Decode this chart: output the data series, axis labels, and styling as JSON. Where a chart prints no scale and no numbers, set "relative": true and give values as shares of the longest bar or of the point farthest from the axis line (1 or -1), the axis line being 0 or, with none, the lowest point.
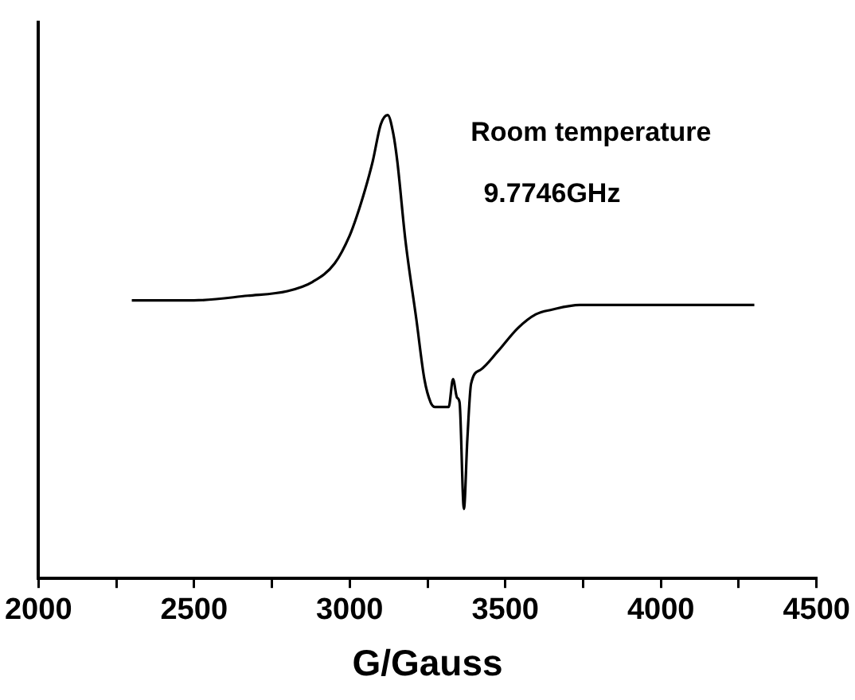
{
  "chart_data": {
    "type": "line",
    "xlabel": "G/Gauss",
    "relative": true,
    "grid": false,
    "legend": false,
    "marker": "none",
    "line_style": "solid",
    "tick_labels": "x",
    "xlim": [
      2000,
      4500
    ],
    "xticks": [
      2000,
      {
        "value": 2250,
        "label": null
      },
      2500,
      {
        "value": 2750,
        "label": null
      },
      3000,
      {
        "value": 3250,
        "label": null
      },
      3500,
      {
        "value": 3750,
        "label": null
      },
      4000,
      {
        "value": 4250,
        "label": null
      },
      4500
    ],
    "annotations": [
      "Room temperature",
      "9.7746GHz"
    ],
    "series": [
      {
        "color": "#000000",
        "x": [
          2300,
          2500,
          2672,
          2800,
          2881,
          2952,
          3000,
          3022,
          3050,
          3074,
          3100,
          3122,
          3140,
          3153,
          3179,
          3214,
          3240,
          3260,
          3274,
          3290,
          3300,
          3318,
          3332,
          3345,
          3353,
          3367,
          3378,
          3390,
          3420,
          3476,
          3540,
          3598,
          3650,
          3739,
          3900,
          4100,
          4300
        ],
        "values": [
          0.6,
          0.6,
          0.61,
          0.62,
          0.64,
          0.68,
          0.74,
          0.78,
          0.84,
          0.9,
          0.98,
          1.0,
          0.96,
          0.9,
          0.73,
          0.56,
          0.43,
          0.38,
          0.37,
          0.37,
          0.37,
          0.37,
          0.43,
          0.39,
          0.38,
          0.15,
          0.3,
          0.42,
          0.45,
          0.49,
          0.54,
          0.57,
          0.58,
          0.59,
          0.59,
          0.59,
          0.59
        ]
      }
    ]
  }
}
